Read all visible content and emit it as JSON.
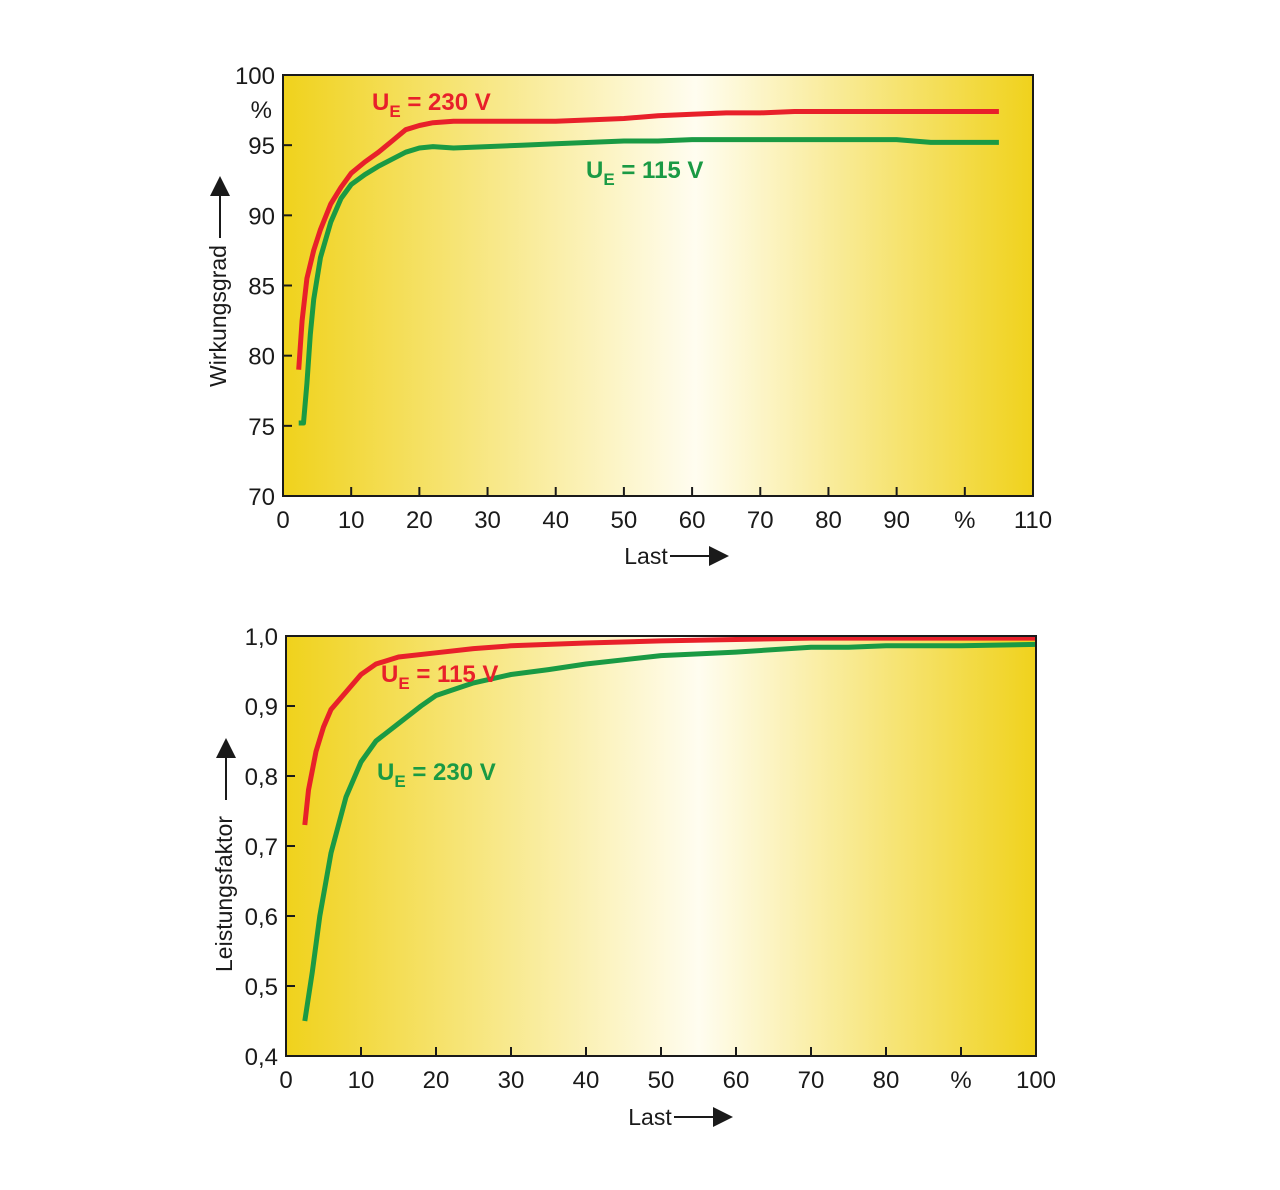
{
  "colors": {
    "red": "#e8202a",
    "green": "#1a9a44",
    "bg_edge": "#f0d21c",
    "bg_center": "#fffdf0",
    "frame": "#1a1a1a"
  },
  "chart_data": [
    {
      "type": "line",
      "xlabel": "Last",
      "ylabel": "Wirkungsgrad",
      "xlim": [
        0,
        110
      ],
      "ylim": [
        70,
        100
      ],
      "x_ticks": [
        "0",
        "10",
        "20",
        "30",
        "40",
        "50",
        "60",
        "70",
        "80",
        "90",
        "%",
        "110"
      ],
      "y_ticks": [
        "70",
        "75",
        "80",
        "85",
        "90",
        "95",
        "100"
      ],
      "y_unit": "%",
      "grid": false,
      "series": [
        {
          "name": "U_E = 230 V",
          "label_main": "U",
          "label_sub": "E",
          "label_rest": " = 230 V",
          "color": "red",
          "x": [
            2.3,
            2.8,
            3.5,
            4.5,
            5.5,
            7,
            8.5,
            10,
            12,
            14,
            16,
            18,
            20,
            22,
            25,
            30,
            35,
            40,
            45,
            50,
            55,
            60,
            65,
            70,
            75,
            80,
            85,
            90,
            95,
            100,
            105
          ],
          "y": [
            79,
            82.5,
            85.5,
            87.5,
            89,
            90.8,
            92,
            93,
            93.8,
            94.5,
            95.3,
            96.1,
            96.4,
            96.6,
            96.7,
            96.7,
            96.7,
            96.7,
            96.8,
            96.9,
            97.1,
            97.2,
            97.3,
            97.3,
            97.4,
            97.4,
            97.4,
            97.4,
            97.4,
            97.4,
            97.4
          ]
        },
        {
          "name": "U_E = 115 V",
          "label_main": "U",
          "label_sub": "E",
          "label_rest": " = 115 V",
          "color": "green",
          "x": [
            2.3,
            3,
            3.5,
            4,
            4.5,
            5.5,
            7,
            8.5,
            10,
            12,
            14,
            16,
            18,
            20,
            22,
            25,
            30,
            35,
            40,
            45,
            50,
            55,
            60,
            65,
            70,
            75,
            80,
            85,
            90,
            95,
            100,
            105
          ],
          "y": [
            75.2,
            75.2,
            78,
            81.5,
            84,
            87,
            89.5,
            91.2,
            92.2,
            92.9,
            93.5,
            94,
            94.5,
            94.8,
            94.9,
            94.8,
            94.9,
            95.0,
            95.1,
            95.2,
            95.3,
            95.3,
            95.4,
            95.4,
            95.4,
            95.4,
            95.4,
            95.4,
            95.4,
            95.2,
            95.2,
            95.2
          ]
        }
      ]
    },
    {
      "type": "line",
      "xlabel": "Last",
      "ylabel": "Leistungsfaktor",
      "xlim": [
        0,
        100
      ],
      "ylim": [
        0.4,
        1.0
      ],
      "x_ticks": [
        "0",
        "10",
        "20",
        "30",
        "40",
        "50",
        "60",
        "70",
        "80",
        "%",
        "100"
      ],
      "y_ticks": [
        "0,4",
        "0,5",
        "0,6",
        "0,7",
        "0,8",
        "0,9",
        "1,0"
      ],
      "grid": false,
      "series": [
        {
          "name": "U_E = 115 V",
          "label_main": "U",
          "label_sub": "E",
          "label_rest": " = 115 V",
          "color": "red",
          "x": [
            2.5,
            3,
            4,
            5,
            6,
            8,
            10,
            12,
            15,
            20,
            25,
            30,
            40,
            50,
            60,
            70,
            80,
            90,
            100
          ],
          "y": [
            0.73,
            0.78,
            0.835,
            0.87,
            0.895,
            0.92,
            0.945,
            0.96,
            0.97,
            0.976,
            0.982,
            0.986,
            0.99,
            0.993,
            0.995,
            0.997,
            0.997,
            0.997,
            0.997
          ]
        },
        {
          "name": "U_E = 230 V",
          "label_main": "U",
          "label_sub": "E",
          "label_rest": " = 230 V",
          "color": "green",
          "x": [
            2.5,
            3.5,
            4.5,
            6,
            8,
            10,
            12,
            15,
            18,
            20,
            25,
            30,
            35,
            40,
            45,
            50,
            60,
            70,
            75,
            80,
            90,
            100
          ],
          "y": [
            0.45,
            0.52,
            0.6,
            0.69,
            0.77,
            0.82,
            0.85,
            0.875,
            0.9,
            0.915,
            0.933,
            0.945,
            0.952,
            0.96,
            0.966,
            0.972,
            0.977,
            0.984,
            0.984,
            0.986,
            0.986,
            0.988
          ]
        }
      ]
    }
  ]
}
